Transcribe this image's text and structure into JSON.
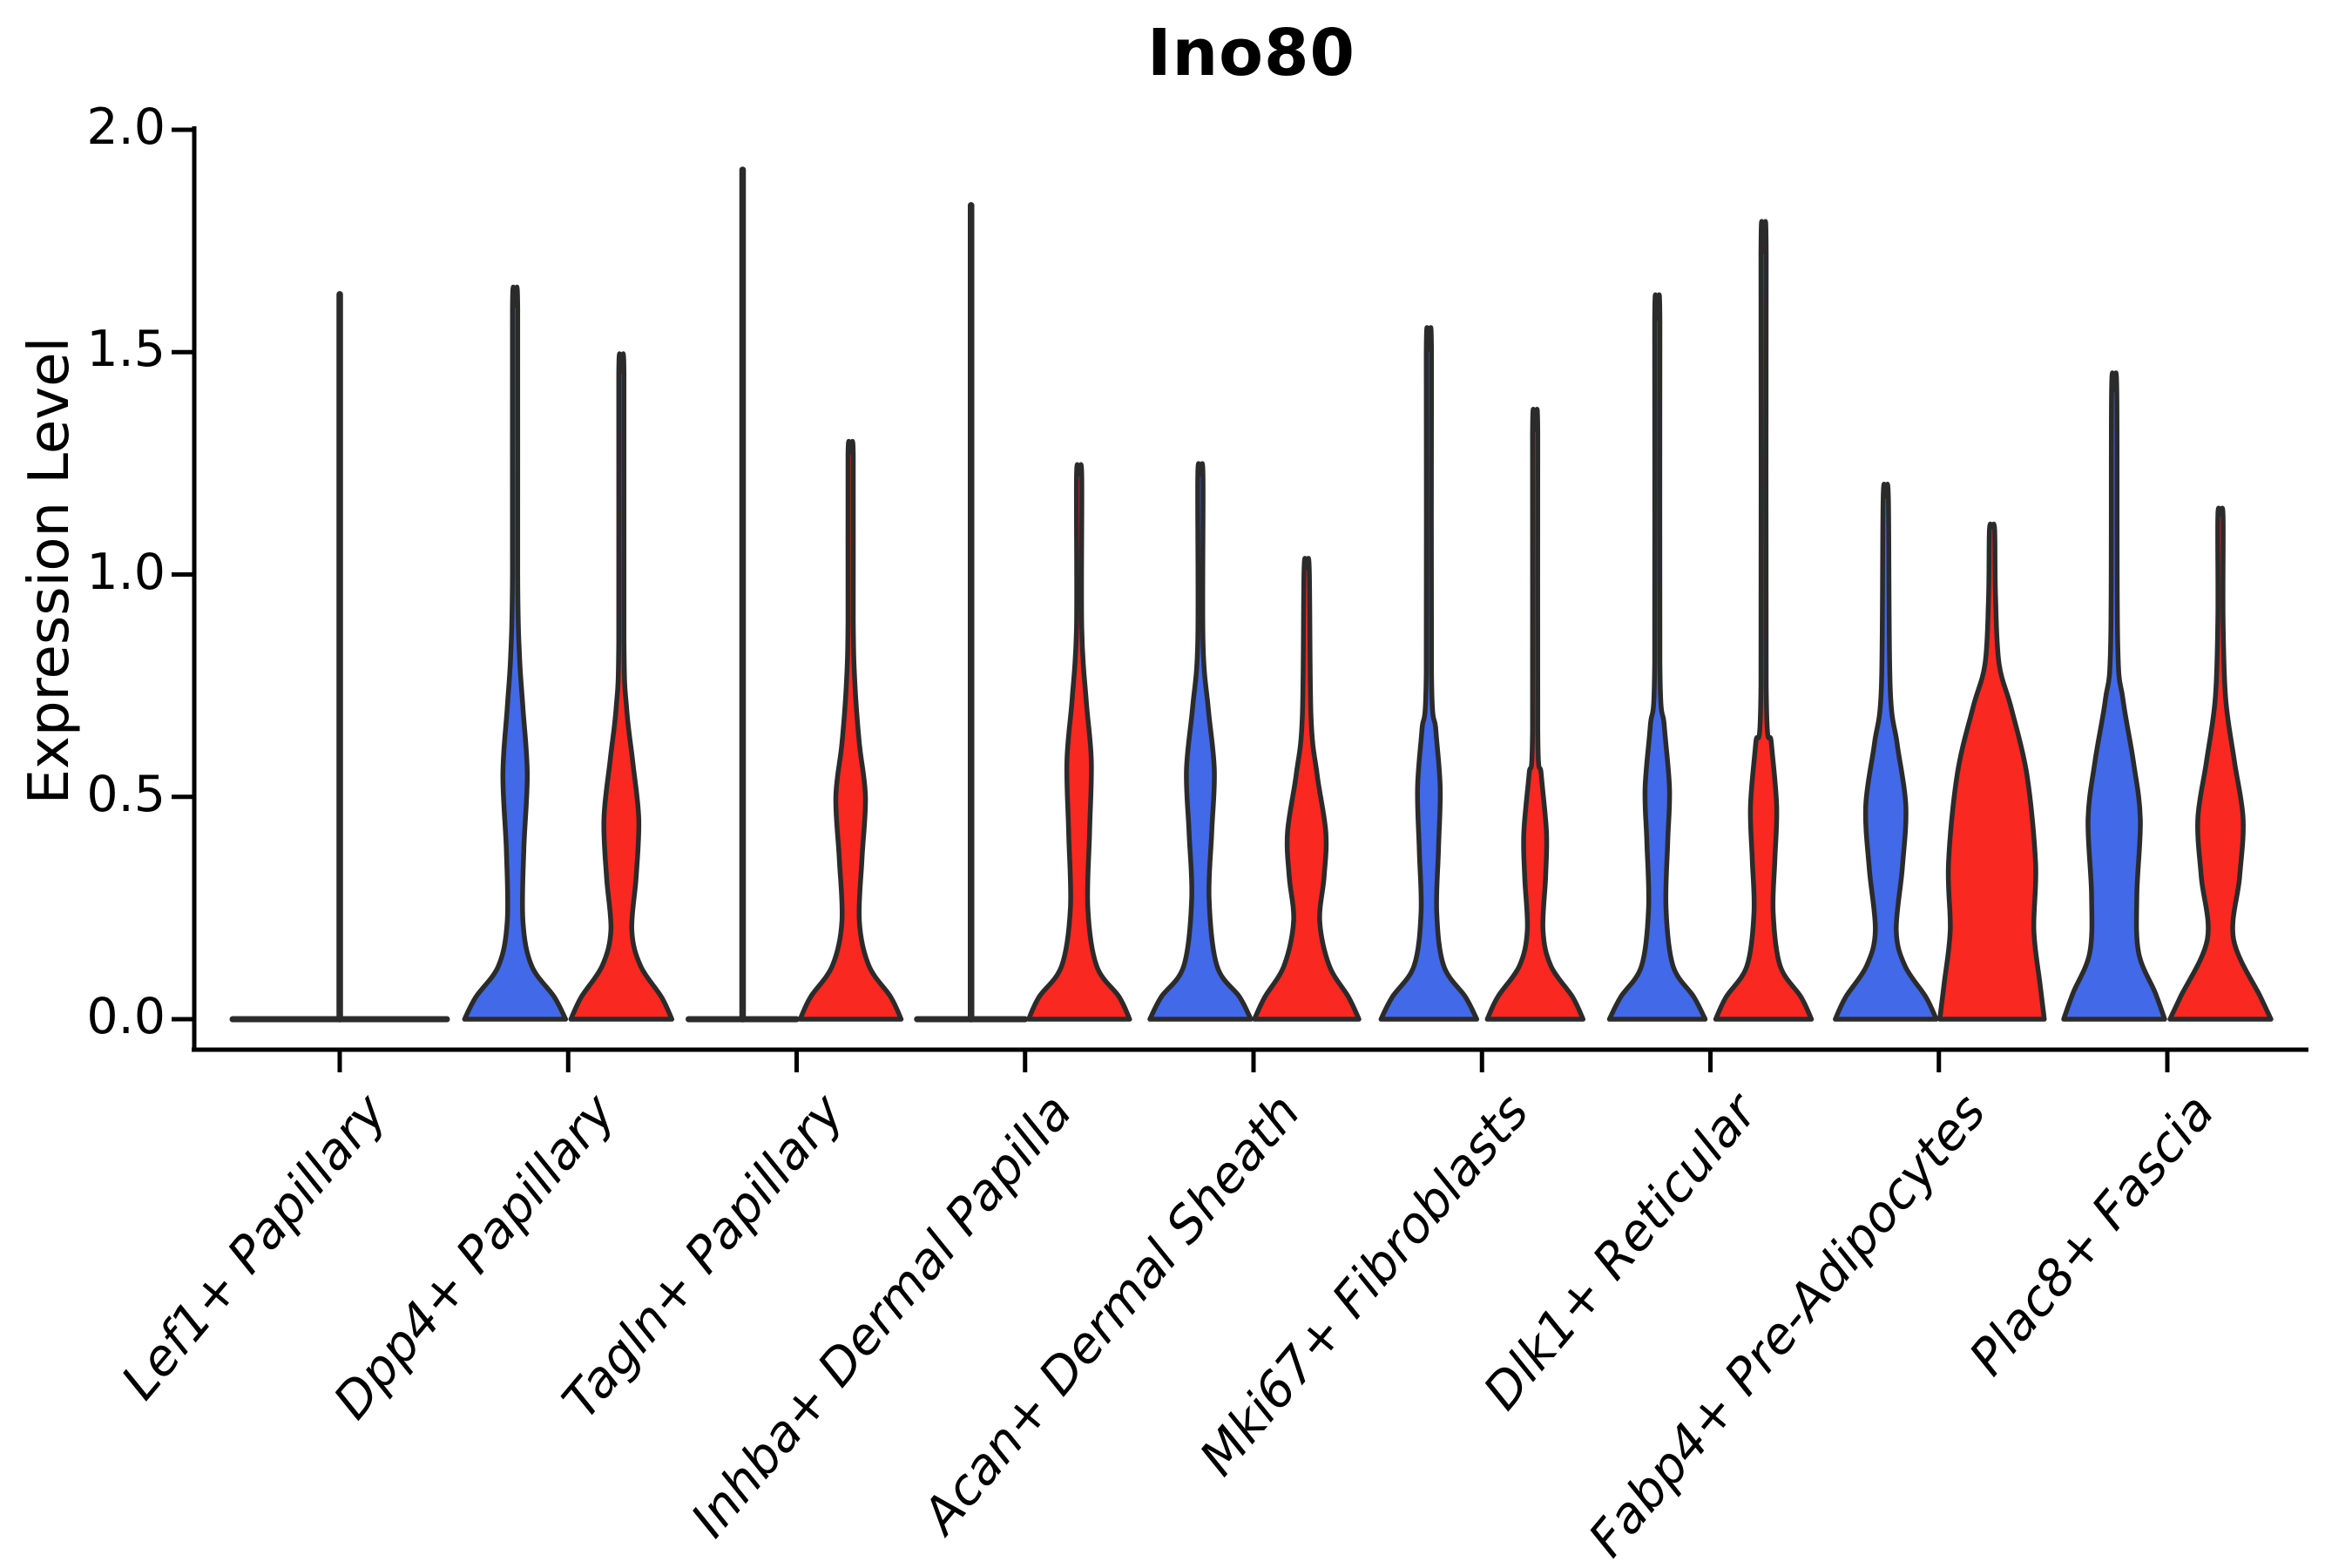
{
  "chart_data": {
    "type": "violin",
    "title": "Ino80",
    "ylabel": "Expression Level",
    "xlabel": "",
    "ylim": [
      -0.07,
      2.0
    ],
    "yticks": [
      0.0,
      0.5,
      1.0,
      1.5,
      2.0
    ],
    "ytick_labels": [
      "0.0",
      "0.5",
      "1.0",
      "1.5",
      "2.0"
    ],
    "grid": false,
    "legend_position": "none",
    "x_tick_rotation_deg": 50,
    "colors": {
      "blue": "#4169e8",
      "red": "#f92820",
      "outline": "#2b2b2b",
      "axis": "#000000"
    },
    "note_units": "profile entries are [expression_value, half_width_px]; top = violin max expression",
    "categories": [
      {
        "label": "Lef1+ Papillary",
        "flat_line": {
          "offset": 0,
          "halfwidth": 123
        },
        "spikes": [
          {
            "offset": 0,
            "top": 1.63
          }
        ],
        "violins": []
      },
      {
        "label": "Dpp4+ Papillary",
        "violins": [
          {
            "series": "blue",
            "offset": -61,
            "top": 1.6,
            "profile": [
              [
                0,
                58
              ],
              [
                0.05,
                45
              ],
              [
                0.12,
                19
              ],
              [
                0.22,
                9
              ],
              [
                0.38,
                10
              ],
              [
                0.55,
                14
              ],
              [
                0.7,
                9
              ],
              [
                0.82,
                5
              ],
              [
                1.0,
                3
              ],
              [
                1.6,
                3
              ]
            ]
          },
          {
            "series": "red",
            "offset": 61,
            "top": 1.45,
            "profile": [
              [
                0,
                58
              ],
              [
                0.05,
                46
              ],
              [
                0.12,
                22
              ],
              [
                0.2,
                12
              ],
              [
                0.32,
                17
              ],
              [
                0.45,
                20
              ],
              [
                0.58,
                13
              ],
              [
                0.7,
                6
              ],
              [
                0.85,
                3
              ],
              [
                1.45,
                3
              ]
            ]
          }
        ]
      },
      {
        "label": "Tagln+ Papillary",
        "flat_line": {
          "offset": -62,
          "halfwidth": 62
        },
        "spikes": [
          {
            "offset": -62,
            "top": 1.91
          }
        ],
        "violins": [
          {
            "series": "red",
            "offset": 62,
            "top": 1.27,
            "profile": [
              [
                0,
                58
              ],
              [
                0.05,
                46
              ],
              [
                0.12,
                21
              ],
              [
                0.22,
                10
              ],
              [
                0.36,
                13
              ],
              [
                0.5,
                17
              ],
              [
                0.62,
                10
              ],
              [
                0.75,
                5
              ],
              [
                0.9,
                3
              ],
              [
                1.27,
                3
              ]
            ]
          }
        ]
      },
      {
        "label": "Inhba+ Dermal Papilla",
        "flat_line": {
          "offset": -62,
          "halfwidth": 62
        },
        "spikes": [
          {
            "offset": -62,
            "top": 1.83
          }
        ],
        "violins": [
          {
            "series": "red",
            "offset": 62,
            "top": 1.22,
            "profile": [
              [
                0,
                58
              ],
              [
                0.05,
                46
              ],
              [
                0.12,
                20
              ],
              [
                0.25,
                10
              ],
              [
                0.42,
                12
              ],
              [
                0.58,
                14
              ],
              [
                0.72,
                8
              ],
              [
                0.88,
                3
              ],
              [
                1.22,
                3
              ]
            ]
          }
        ]
      },
      {
        "label": "Acan+ Dermal Sheath",
        "violins": [
          {
            "series": "blue",
            "offset": -61,
            "top": 1.22,
            "profile": [
              [
                0,
                58
              ],
              [
                0.05,
                45
              ],
              [
                0.12,
                19
              ],
              [
                0.27,
                10
              ],
              [
                0.42,
                13
              ],
              [
                0.56,
                16
              ],
              [
                0.7,
                9
              ],
              [
                0.85,
                3
              ],
              [
                1.22,
                3
              ]
            ]
          },
          {
            "series": "red",
            "offset": 61,
            "top": 1.01,
            "profile": [
              [
                0,
                60
              ],
              [
                0.05,
                48
              ],
              [
                0.12,
                26
              ],
              [
                0.22,
                15
              ],
              [
                0.32,
                20
              ],
              [
                0.42,
                22
              ],
              [
                0.55,
                12
              ],
              [
                0.68,
                5
              ],
              [
                1.01,
                3
              ]
            ]
          }
        ]
      },
      {
        "label": "Mki67+ Fibroblasts",
        "violins": [
          {
            "series": "blue",
            "offset": -61,
            "top": 1.5,
            "profile": [
              [
                0,
                55
              ],
              [
                0.05,
                42
              ],
              [
                0.12,
                17
              ],
              [
                0.24,
                9
              ],
              [
                0.38,
                11
              ],
              [
                0.52,
                13
              ],
              [
                0.65,
                8
              ],
              [
                0.78,
                3
              ],
              [
                1.5,
                3
              ]
            ]
          },
          {
            "series": "red",
            "offset": 61,
            "top": 1.32,
            "profile": [
              [
                0,
                55
              ],
              [
                0.05,
                43
              ],
              [
                0.12,
                18
              ],
              [
                0.2,
                9
              ],
              [
                0.32,
                12
              ],
              [
                0.42,
                13
              ],
              [
                0.55,
                7
              ],
              [
                0.65,
                3
              ],
              [
                1.32,
                3
              ]
            ]
          }
        ]
      },
      {
        "label": "Dlk1+ Reticular",
        "violins": [
          {
            "series": "blue",
            "offset": -61,
            "top": 1.57,
            "profile": [
              [
                0,
                55
              ],
              [
                0.05,
                42
              ],
              [
                0.12,
                18
              ],
              [
                0.25,
                10
              ],
              [
                0.4,
                12
              ],
              [
                0.52,
                14
              ],
              [
                0.66,
                8
              ],
              [
                0.8,
                3
              ],
              [
                1.57,
                3
              ]
            ]
          },
          {
            "series": "red",
            "offset": 61,
            "top": 1.72,
            "profile": [
              [
                0,
                55
              ],
              [
                0.05,
                43
              ],
              [
                0.12,
                19
              ],
              [
                0.24,
                11
              ],
              [
                0.36,
                13
              ],
              [
                0.48,
                15
              ],
              [
                0.62,
                9
              ],
              [
                0.75,
                3
              ],
              [
                1.72,
                3
              ]
            ]
          }
        ]
      },
      {
        "label": "Fabp4+ Pre-Adipocytes",
        "violins": [
          {
            "series": "blue",
            "offset": -61,
            "top": 1.17,
            "profile": [
              [
                0,
                58
              ],
              [
                0.05,
                46
              ],
              [
                0.12,
                22
              ],
              [
                0.2,
                12
              ],
              [
                0.34,
                19
              ],
              [
                0.48,
                23
              ],
              [
                0.62,
                13
              ],
              [
                0.75,
                5
              ],
              [
                1.17,
                3
              ]
            ]
          },
          {
            "series": "red",
            "offset": 61,
            "top": 1.1,
            "profile": [
              [
                0,
                60
              ],
              [
                0.08,
                55
              ],
              [
                0.2,
                48
              ],
              [
                0.35,
                50
              ],
              [
                0.55,
                40
              ],
              [
                0.7,
                22
              ],
              [
                0.8,
                8
              ],
              [
                0.95,
                4
              ],
              [
                1.1,
                3
              ]
            ]
          }
        ]
      },
      {
        "label": "Plac8+ Fascia",
        "violins": [
          {
            "series": "blue",
            "offset": -61,
            "top": 1.41,
            "profile": [
              [
                0,
                58
              ],
              [
                0.06,
                47
              ],
              [
                0.15,
                28
              ],
              [
                0.28,
                26
              ],
              [
                0.45,
                30
              ],
              [
                0.58,
                22
              ],
              [
                0.72,
                10
              ],
              [
                0.85,
                4
              ],
              [
                1.41,
                3
              ]
            ]
          },
          {
            "series": "red",
            "offset": 61,
            "top": 1.13,
            "profile": [
              [
                0,
                58
              ],
              [
                0.05,
                46
              ],
              [
                0.18,
                15
              ],
              [
                0.32,
                22
              ],
              [
                0.45,
                26
              ],
              [
                0.58,
                16
              ],
              [
                0.72,
                6
              ],
              [
                0.9,
                3
              ],
              [
                1.13,
                3
              ]
            ]
          }
        ]
      }
    ]
  }
}
